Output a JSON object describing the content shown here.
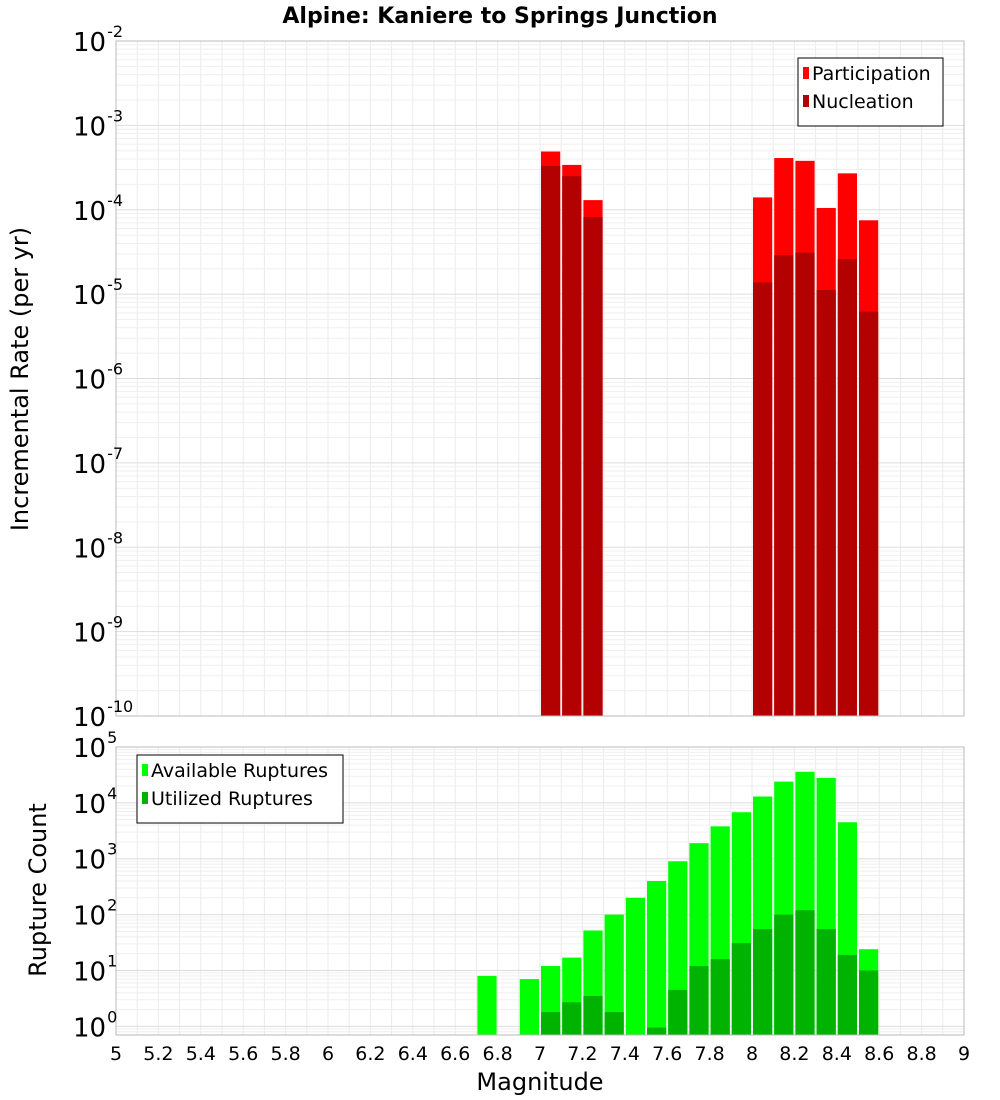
{
  "chart_data": [
    {
      "type": "bar",
      "title": "Alpine: Kaniere to Springs Junction",
      "ylabel": "Incremental Rate (per yr)",
      "xlabel": "",
      "yscale": "log",
      "ylim": [
        1e-10,
        0.01
      ],
      "xlim": [
        5,
        9
      ],
      "legend": "top-right",
      "y_tick_labels": [
        {
          "base": "10",
          "exp": "-10"
        },
        {
          "base": "10",
          "exp": "-9"
        },
        {
          "base": "10",
          "exp": "-8"
        },
        {
          "base": "10",
          "exp": "-7"
        },
        {
          "base": "10",
          "exp": "-6"
        },
        {
          "base": "10",
          "exp": "-5"
        },
        {
          "base": "10",
          "exp": "-4"
        },
        {
          "base": "10",
          "exp": "-3"
        },
        {
          "base": "10",
          "exp": "-2"
        }
      ],
      "bin_width": 0.1,
      "series": [
        {
          "name": "Participation",
          "color": "#ff0000",
          "x": [
            7.05,
            7.15,
            7.25,
            8.05,
            8.15,
            8.25,
            8.35,
            8.45,
            8.55
          ],
          "values": [
            0.00049,
            0.00034,
            0.00013,
            0.00014,
            0.00041,
            0.00038,
            0.000105,
            0.00027,
            7.5e-05
          ]
        },
        {
          "name": "Nucleation",
          "color": "#b30000",
          "x": [
            7.05,
            7.15,
            7.25,
            8.05,
            8.15,
            8.25,
            8.35,
            8.45,
            8.55
          ],
          "values": [
            0.00033,
            0.00025,
            8.2e-05,
            1.38e-05,
            2.9e-05,
            3.1e-05,
            1.12e-05,
            2.6e-05,
            6.2e-06
          ]
        }
      ]
    },
    {
      "type": "bar",
      "title": "",
      "ylabel": "Rupture Count",
      "xlabel": "Magnitude",
      "yscale": "log",
      "ylim": [
        0.7,
        100000
      ],
      "xlim": [
        5,
        9
      ],
      "legend": "top-left",
      "y_tick_labels": [
        {
          "base": "10",
          "exp": "0"
        },
        {
          "base": "10",
          "exp": "1"
        },
        {
          "base": "10",
          "exp": "2"
        },
        {
          "base": "10",
          "exp": "3"
        },
        {
          "base": "10",
          "exp": "4"
        },
        {
          "base": "10",
          "exp": "5"
        }
      ],
      "x_tick_labels": [
        "5",
        "5.2",
        "5.4",
        "5.6",
        "5.8",
        "6",
        "6.2",
        "6.4",
        "6.6",
        "6.8",
        "7",
        "7.2",
        "7.4",
        "7.6",
        "7.8",
        "8",
        "8.2",
        "8.4",
        "8.6",
        "8.8",
        "9"
      ],
      "bin_width": 0.1,
      "series": [
        {
          "name": "Available Ruptures",
          "color": "#00ff00",
          "x": [
            6.75,
            6.95,
            7.05,
            7.15,
            7.25,
            7.35,
            7.45,
            7.55,
            7.65,
            7.75,
            7.85,
            7.95,
            8.05,
            8.15,
            8.25,
            8.35,
            8.45,
            8.55
          ],
          "values": [
            8,
            7,
            12,
            17,
            52,
            100,
            200,
            400,
            900,
            1900,
            3800,
            6800,
            13000,
            24000,
            36000,
            28000,
            4500,
            24
          ]
        },
        {
          "name": "Utilized Ruptures",
          "color": "#00b300",
          "x": [
            7.05,
            7.15,
            7.25,
            7.35,
            7.55,
            7.65,
            7.75,
            7.85,
            7.95,
            8.05,
            8.15,
            8.25,
            8.35,
            8.45,
            8.55
          ],
          "values": [
            1.8,
            2.7,
            3.5,
            1.8,
            0.95,
            4.5,
            12,
            16,
            31,
            55,
            100,
            120,
            55,
            19,
            10
          ]
        }
      ]
    }
  ]
}
